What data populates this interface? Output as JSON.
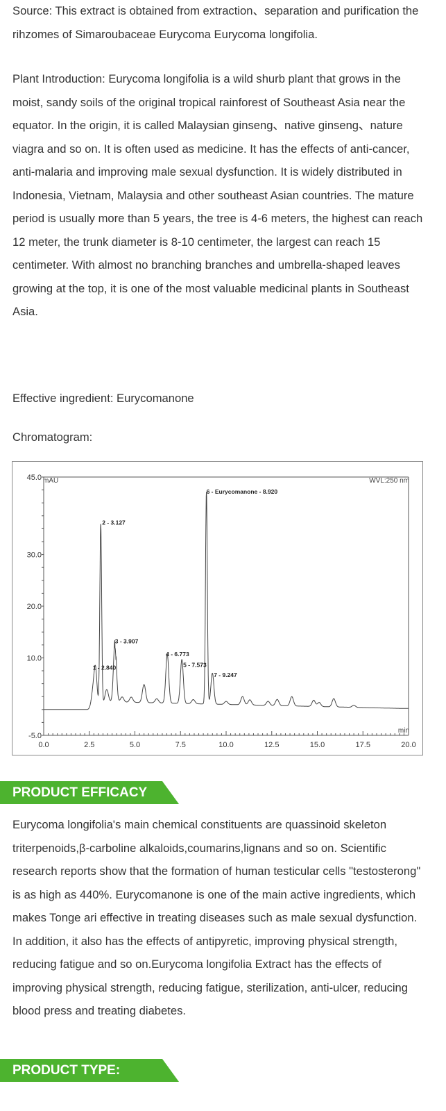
{
  "source": "Source: This extract is obtained from extraction、separation and purification the rihzomes of Simaroubaceae Eurycoma Eurycoma longifolia.",
  "intro": "Plant Introduction: Eurycoma longifolia is a wild shurb plant that grows in the moist, sandy soils of the original tropical rainforest of Southeast Asia near the equator. In the origin, it is called Malaysian ginseng、native ginseng、nature viagra and so on. It is often used as medicine. It has the effects of anti-cancer, anti-malaria and improving male sexual dysfunction. It is widely distributed in Indonesia, Vietnam, Malaysia and other southeast Asian countries. The mature period is usually more than 5 years, the tree is 4-6 meters, the highest can reach 12 meter, the trunk diameter is 8-10 centimeter, the largest can reach 15 centimeter. With almost no branching branches and umbrella-shaped leaves growing at the top, it is one of the most valuable medicinal plants in Southeast Asia.",
  "ingredient": "Effective ingredient: Eurycomanone",
  "chromatogram_label": "Chromatogram:",
  "chart_data": {
    "type": "line",
    "ylabel": "mAU",
    "xlabel": "min",
    "annotation": "WVL:250 nm",
    "xlim": [
      0,
      20
    ],
    "ylim": [
      -5,
      45
    ],
    "x_ticks": [
      "0.0",
      "2.5",
      "5.0",
      "7.5",
      "10.0",
      "12.5",
      "15.0",
      "17.5",
      "20.0"
    ],
    "y_ticks": [
      "45.0",
      "30.0",
      "20.0",
      "10.0",
      "-5.0"
    ],
    "peaks": [
      {
        "label": "1 - 2.840",
        "time": 2.84,
        "height": 7
      },
      {
        "label": "2 - 3.127",
        "time": 3.127,
        "height": 35
      },
      {
        "label": "3 - 3.907",
        "time": 3.907,
        "height": 12
      },
      {
        "label": "4 - 6.773",
        "time": 6.773,
        "height": 9.5
      },
      {
        "label": "5 - 7.573",
        "time": 7.573,
        "height": 8.5
      },
      {
        "label": "6 - Eurycomanone - 8.920",
        "time": 8.92,
        "height": 41
      },
      {
        "label": "7 - 9.247",
        "time": 9.247,
        "height": 6
      }
    ]
  },
  "efficacy": {
    "title": "PRODUCT EFFICACY",
    "text": "Eurycoma longifolia's main chemical constituents are quassinoid skeleton triterpenoids,β-carboline alkaloids,coumarins,lignans and so on. Scientific research reports show that the formation of human testicular cells \"testosterong\" is as high as 440%. Eurycomanone is one of the main active ingredients, which makes Tonge ari effective in treating diseases such as male sexual dysfunction. In addition, it also has the effects of antipyretic, improving physical strength, reducing fatigue and so on.Eurycoma longifolia Extract has the effects of improving physical strength, reducing fatigue, sterilization, anti-ulcer,  reducing blood press and treating diabetes."
  },
  "type": {
    "title": "PRODUCT TYPE:"
  }
}
